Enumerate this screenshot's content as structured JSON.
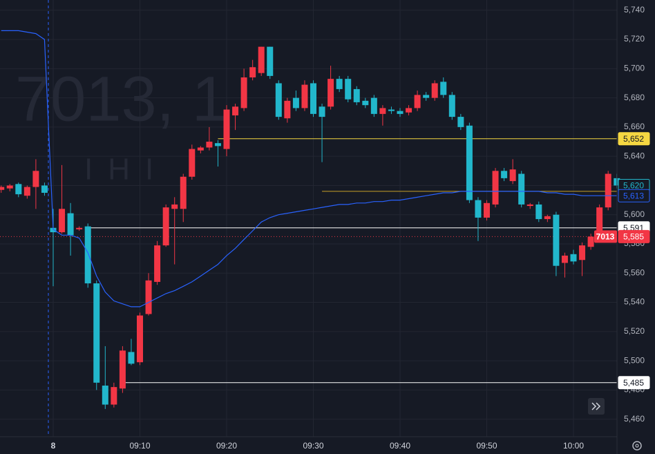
{
  "chart_data": {
    "type": "candlestick",
    "watermark": [
      "7013, 1",
      "IHI"
    ],
    "categories": [
      null,
      null,
      null,
      null,
      null,
      null,
      "8",
      null,
      null,
      null,
      null,
      null,
      null,
      null,
      null,
      null,
      "09:10",
      null,
      null,
      null,
      null,
      null,
      null,
      null,
      null,
      null,
      "09:20",
      null,
      null,
      null,
      null,
      null,
      null,
      null,
      null,
      null,
      "09:30",
      null,
      null,
      null,
      null,
      null,
      null,
      null,
      null,
      null,
      "09:40",
      null,
      null,
      null,
      null,
      null,
      null,
      null,
      null,
      null,
      "09:50",
      null,
      null,
      null,
      null,
      null,
      null,
      null,
      null,
      null,
      "10:00",
      null,
      null,
      null,
      null,
      null
    ],
    "open": [
      5617,
      5618,
      5621,
      5613,
      5619,
      5620,
      5591,
      5588,
      5601,
      5590,
      5592,
      5553,
      5483,
      5470,
      5481,
      5506,
      5499,
      5532,
      5554,
      5579,
      5604,
      5604,
      5626,
      5644,
      5646,
      5649,
      5645,
      5668,
      5673,
      5694,
      5697,
      5715,
      5690,
      5666,
      5680,
      5673,
      5690,
      5674,
      5674,
      5693,
      5693,
      5686,
      5678,
      5680,
      5669,
      5672,
      5671,
      5670,
      5673,
      5682,
      5680,
      5691,
      5682,
      5667,
      5661,
      5610,
      5598,
      5607,
      5630,
      5623,
      5628,
      5606,
      5607,
      5597,
      5600,
      5567,
      5573,
      5569,
      5578,
      5584,
      5605,
      5625
    ],
    "high": [
      5620,
      5621,
      5622,
      5620,
      5638,
      5622,
      5604,
      5634,
      5608,
      5592,
      5594,
      5555,
      5510,
      5485,
      5510,
      5515,
      5533,
      5560,
      5582,
      5607,
      5612,
      5628,
      5648,
      5647,
      5660,
      5651,
      5675,
      5676,
      5700,
      5706,
      5715,
      5715,
      5692,
      5680,
      5685,
      5692,
      5692,
      5676,
      5702,
      5695,
      5695,
      5688,
      5680,
      5682,
      5675,
      5674,
      5673,
      5675,
      5685,
      5684,
      5692,
      5694,
      5684,
      5669,
      5663,
      5612,
      5610,
      5632,
      5632,
      5638,
      5630,
      5608,
      5609,
      5600,
      5602,
      5574,
      5576,
      5581,
      5587,
      5607,
      5630,
      5628
    ],
    "low": [
      5615,
      5616,
      5612,
      5611,
      5604,
      5613,
      5551,
      5587,
      5572,
      5589,
      5550,
      5480,
      5467,
      5468,
      5478,
      5497,
      5497,
      5531,
      5552,
      5578,
      5566,
      5595,
      5624,
      5642,
      5644,
      5633,
      5640,
      5658,
      5671,
      5692,
      5695,
      5693,
      5665,
      5663,
      5671,
      5671,
      5667,
      5636,
      5672,
      5684,
      5677,
      5675,
      5673,
      5667,
      5661,
      5669,
      5667,
      5668,
      5671,
      5678,
      5678,
      5680,
      5665,
      5658,
      5608,
      5582,
      5596,
      5605,
      5623,
      5621,
      5605,
      5604,
      5595,
      5595,
      5558,
      5557,
      5566,
      5558,
      5576,
      5582,
      5603,
      5618
    ],
    "close": [
      5619,
      5620,
      5614,
      5619,
      5630,
      5615,
      5588,
      5604,
      5586,
      5591,
      5553,
      5485,
      5470,
      5482,
      5507,
      5498,
      5531,
      5555,
      5579,
      5605,
      5607,
      5626,
      5645,
      5646,
      5650,
      5647,
      5672,
      5674,
      5694,
      5701,
      5715,
      5695,
      5667,
      5678,
      5673,
      5689,
      5669,
      5667,
      5693,
      5686,
      5679,
      5677,
      5675,
      5669,
      5673,
      5671,
      5669,
      5673,
      5682,
      5680,
      5690,
      5682,
      5667,
      5660,
      5610,
      5598,
      5608,
      5630,
      5625,
      5631,
      5607,
      5607,
      5597,
      5599,
      5565,
      5572,
      5568,
      5579,
      5585,
      5605,
      5628,
      5620
    ],
    "up_color": "#f23645",
    "down_color": "#22b7cc",
    "ma": {
      "color": "#2962ff",
      "values": [
        5726,
        5726,
        5726,
        5725,
        5724,
        5720,
        5590,
        5586,
        5586,
        5584,
        5574,
        5558,
        5547,
        5541,
        5539,
        5537,
        5537,
        5540,
        5543,
        5546,
        5548,
        5551,
        5554,
        5558,
        5562,
        5566,
        5572,
        5577,
        5583,
        5589,
        5595,
        5598,
        5600,
        5601,
        5602,
        5603,
        5604,
        5605,
        5606,
        5607,
        5607,
        5608,
        5608,
        5609,
        5609,
        5610,
        5610,
        5611,
        5612,
        5613,
        5614,
        5615,
        5615,
        5616,
        5616,
        5616,
        5616,
        5616,
        5616,
        5616,
        5616,
        5616,
        5616,
        5615,
        5615,
        5614,
        5614,
        5613,
        5613,
        5613,
        5613,
        5613
      ]
    },
    "levels": [
      {
        "value": 5652,
        "start": 25,
        "color": "#f5d742"
      },
      {
        "value": 5591,
        "start": 10,
        "color": "#ffffff"
      },
      {
        "value": 5485,
        "start": 14,
        "color": "#ffffff"
      },
      {
        "value": 5616,
        "start": 37,
        "color": "#c9a227"
      }
    ],
    "price_tags": [
      {
        "value": 5652,
        "label": "5,652",
        "bg": "#f5d742",
        "fg": "#131722"
      },
      {
        "value": 5620,
        "label": "5,620",
        "bg": "#161a25",
        "fg": "#22b7cc"
      },
      {
        "value": 5613,
        "label": "5,613",
        "bg": "#161a25",
        "fg": "#2962ff"
      },
      {
        "value": 5591,
        "label": "5,591",
        "bg": "#ffffff",
        "fg": "#131722"
      },
      {
        "value": 5585,
        "label": "5,585",
        "bg": "#f23645",
        "fg": "#ffffff",
        "symbol": "7013"
      },
      {
        "value": 5485,
        "label": "5,485",
        "bg": "#ffffff",
        "fg": "#131722"
      }
    ],
    "ylim": [
      5448,
      5747
    ],
    "yticks": [
      {
        "value": 5460,
        "label": "5,460"
      },
      {
        "value": 5480,
        "label": "5,480"
      },
      {
        "value": 5500,
        "label": "5,500"
      },
      {
        "value": 5520,
        "label": "5,520"
      },
      {
        "value": 5540,
        "label": "5,540"
      },
      {
        "value": 5560,
        "label": "5,560"
      },
      {
        "value": 5580,
        "label": "5,580"
      },
      {
        "value": 5600,
        "label": "5,600"
      },
      {
        "value": 5620,
        "label": "5,620"
      },
      {
        "value": 5640,
        "label": "5,640"
      },
      {
        "value": 5660,
        "label": "5,660"
      },
      {
        "value": 5680,
        "label": "5,680"
      },
      {
        "value": 5700,
        "label": "5,700"
      },
      {
        "value": 5720,
        "label": "5,720"
      },
      {
        "value": 5740,
        "label": "5,740"
      }
    ],
    "grid": true
  }
}
